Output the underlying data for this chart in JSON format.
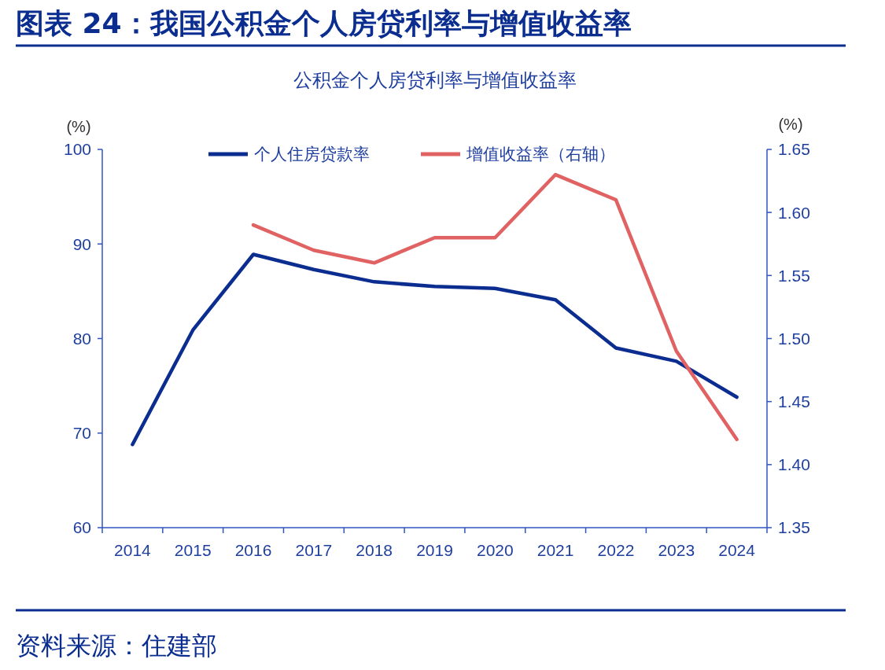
{
  "chart_data": {
    "type": "line",
    "title": "图表 24：我国公积金个人房贷利率与增值收益率",
    "subtitle": "公积金个人房贷利率与增值收益率",
    "ylabel": "(%)",
    "y2label": "(%)",
    "categories": [
      "2014",
      "2015",
      "2016",
      "2017",
      "2018",
      "2019",
      "2020",
      "2021",
      "2022",
      "2023",
      "2024"
    ],
    "series": [
      {
        "name": "个人住房贷款率",
        "color": "#0a2d8f",
        "values": [
          68.8,
          80.9,
          88.9,
          87.3,
          86.0,
          85.5,
          85.3,
          84.1,
          79.0,
          77.6,
          73.8
        ]
      },
      {
        "name": "增值收益率（右轴）",
        "color": "#e06262",
        "axis": "y2",
        "values": [
          null,
          null,
          1.59,
          1.57,
          1.56,
          1.58,
          1.58,
          1.63,
          1.61,
          1.49,
          1.42
        ]
      }
    ],
    "ylim": [
      60,
      100
    ],
    "yticks": [
      60,
      70,
      80,
      90,
      100
    ],
    "y2lim": [
      1.35,
      1.65
    ],
    "y2ticks": [
      {
        "value": 1.35,
        "label": "1.35"
      },
      {
        "value": 1.4,
        "label": "1.40"
      },
      {
        "value": 1.45,
        "label": "1.45"
      },
      {
        "value": 1.5,
        "label": "1.50"
      },
      {
        "value": 1.55,
        "label": "1.55"
      },
      {
        "value": 1.6,
        "label": "1.60"
      },
      {
        "value": 1.65,
        "label": "1.65"
      }
    ],
    "legend": "top",
    "grid": false,
    "marker": "none",
    "line_style": "solid",
    "annotations": [
      "资料来源：住建部"
    ]
  }
}
